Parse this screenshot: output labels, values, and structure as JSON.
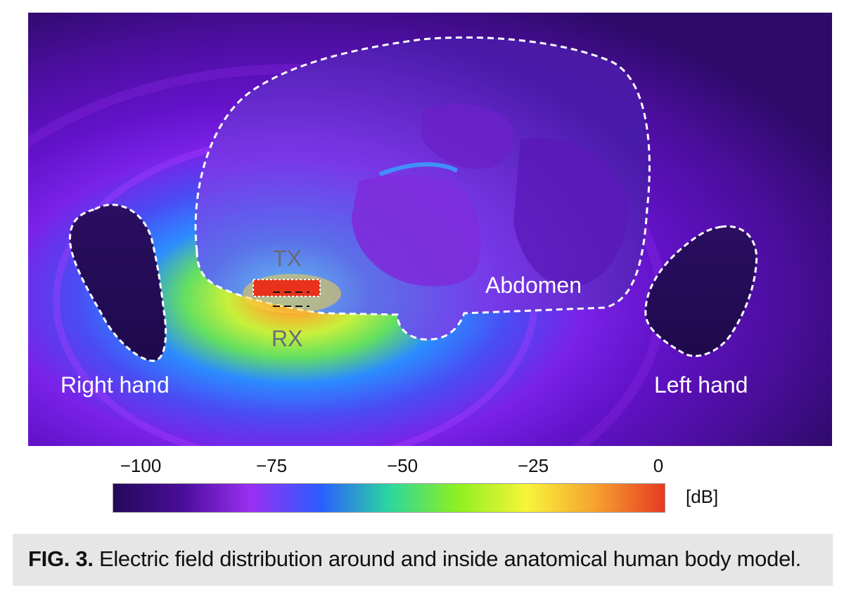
{
  "figure": {
    "labels": {
      "tx": "TX",
      "rx": "RX",
      "abdomen": "Abdomen",
      "right_hand": "Right hand",
      "left_hand": "Left hand"
    }
  },
  "colorbar": {
    "ticks": [
      "−100",
      "−75",
      "−50",
      "−25",
      "0"
    ],
    "tick_values": [
      -100,
      -75,
      -50,
      -25,
      0
    ],
    "unit": "[dB]",
    "colors": [
      "#24095a",
      "#4a0d9a",
      "#9a30f2",
      "#2b5cff",
      "#2bd6a0",
      "#8ef020",
      "#f8f43a",
      "#f6a030",
      "#e83a22"
    ]
  },
  "caption": {
    "label": "FIG. 3.",
    "text": " Electric field distribution around and inside anatomical human body model."
  }
}
